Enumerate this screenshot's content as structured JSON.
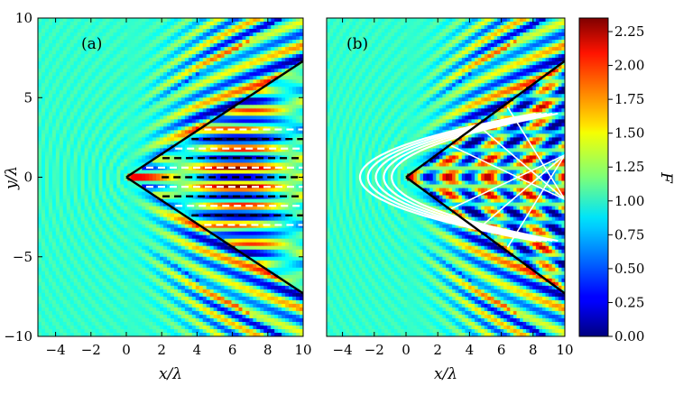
{
  "chart_data": [
    {
      "type": "heatmap",
      "panel_label": "(a)",
      "xlabel": "x/λ",
      "ylabel": "y/λ",
      "xlim": [
        -5,
        10
      ],
      "ylim": [
        -10,
        10
      ],
      "xticks": [
        "−4",
        "−2",
        "0",
        "2",
        "4",
        "6",
        "8",
        "10"
      ],
      "xtick_values": [
        -4,
        -2,
        0,
        2,
        4,
        6,
        8,
        10
      ],
      "yticks": [
        "−10",
        "−5",
        "0",
        "5",
        "10"
      ],
      "ytick_values": [
        -10,
        -5,
        0,
        5,
        10
      ],
      "wedge": {
        "apex": [
          0,
          0
        ],
        "upper_end": [
          10,
          7.3
        ],
        "lower_end": [
          10,
          -7.3
        ]
      },
      "dashed_lines": {
        "white_y": [
          3.0,
          1.8,
          0.6,
          -0.6,
          -1.8,
          -3.0
        ],
        "black_y": [
          2.4,
          1.2,
          0,
          -1.2,
          -2.4
        ],
        "x_range": [
          2,
          10
        ]
      }
    },
    {
      "type": "heatmap",
      "panel_label": "(b)",
      "xlabel": "x/λ",
      "ylabel": "",
      "xlim": [
        -5,
        10
      ],
      "ylim": [
        -10,
        10
      ],
      "xticks": [
        "−4",
        "−2",
        "0",
        "2",
        "4",
        "6",
        "8",
        "10"
      ],
      "xtick_values": [
        -4,
        -2,
        0,
        2,
        4,
        6,
        8,
        10
      ],
      "wedge": {
        "apex": [
          0,
          0
        ],
        "upper_end": [
          10,
          7.3
        ],
        "lower_end": [
          10,
          -7.3
        ]
      },
      "white_curves": "nested parabolic contours around the wedge apex"
    }
  ],
  "colorbar": {
    "label": "F",
    "min": 0.0,
    "max": 2.35,
    "ticks": [
      "0.00",
      "0.25",
      "0.50",
      "0.75",
      "1.00",
      "1.25",
      "1.50",
      "1.75",
      "2.00",
      "2.25"
    ],
    "tick_values": [
      0.0,
      0.25,
      0.5,
      0.75,
      1.0,
      1.25,
      1.5,
      1.75,
      2.0,
      2.25
    ],
    "colormap": "jet"
  }
}
